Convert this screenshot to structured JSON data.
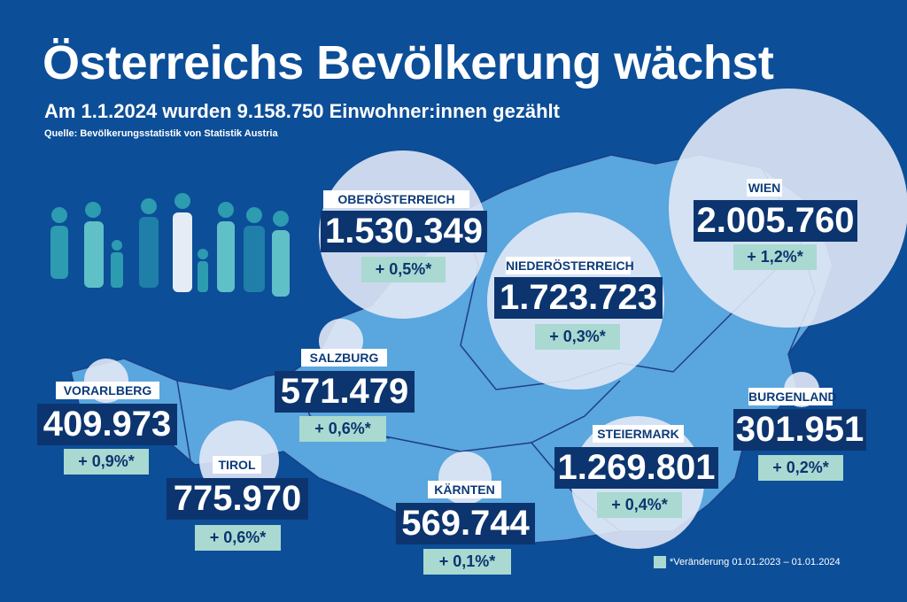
{
  "header": {
    "title": "Österreichs Bevölkerung wächst",
    "subtitle": "Am 1.1.2024 wurden 9.158.750 Einwohner:innen gezählt",
    "source": "Quelle: Bevölkerungsstatistik von Statistik Austria"
  },
  "regions": [
    {
      "id": "oberoesterreich",
      "name": "OBERÖSTERREICH",
      "population": "1.530.349",
      "change": "+ 0,5%*"
    },
    {
      "id": "wien",
      "name": "WIEN",
      "population": "2.005.760",
      "change": "+ 1,2%*"
    },
    {
      "id": "niederoesterreich",
      "name": "NIEDERÖSTERREICH",
      "population": "1.723.723",
      "change": "+ 0,3%*"
    },
    {
      "id": "salzburg",
      "name": "SALZBURG",
      "population": "571.479",
      "change": "+ 0,6%*"
    },
    {
      "id": "vorarlberg",
      "name": "VORARLBERG",
      "population": "409.973",
      "change": "+ 0,9%*"
    },
    {
      "id": "tirol",
      "name": "TIROL",
      "population": "775.970",
      "change": "+ 0,6%*"
    },
    {
      "id": "kaernten",
      "name": "KÄRNTEN",
      "population": "569.744",
      "change": "+ 0,1%*"
    },
    {
      "id": "steiermark",
      "name": "STEIERMARK",
      "population": "1.269.801",
      "change": "+ 0,4%*"
    },
    {
      "id": "burgenland",
      "name": "BURGENLAND",
      "population": "301.951",
      "change": "+ 0,2%*"
    }
  ],
  "legend": {
    "text": "*Veränderung 01.01.2023 – 01.01.2024",
    "color": "#a9d9d0"
  },
  "colors": {
    "background": "#0c4e98",
    "map": "#5aa6de",
    "number_box": "#0c356f",
    "change_box": "#a9d9d0"
  }
}
